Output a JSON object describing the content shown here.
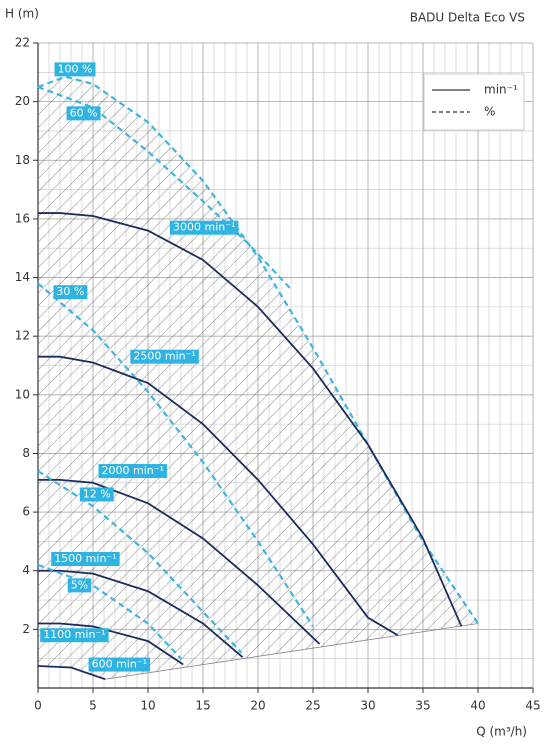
{
  "chart_data": {
    "type": "line",
    "title": "BADU Delta Eco VS",
    "y_label": "H (m)",
    "x_label": "Q (m³/h)",
    "xlim": [
      0,
      45
    ],
    "xticks": [
      0,
      5,
      10,
      15,
      20,
      25,
      30,
      35,
      40,
      45
    ],
    "ylim": [
      0,
      22
    ],
    "yticks": [
      2,
      4,
      6,
      8,
      10,
      12,
      14,
      16,
      18,
      20,
      22
    ],
    "grid": true,
    "legend": {
      "corner": "top-right",
      "entries": [
        {
          "label": "min⁻¹",
          "style": "solid",
          "color": "#1b2c5c"
        },
        {
          "label": "%",
          "style": "dashed",
          "color": "#3fb6e0"
        }
      ]
    },
    "series": [
      {
        "name": "100 %",
        "style": "dashed",
        "color": "#3fb6e0",
        "x": [
          0,
          2.5,
          5,
          10,
          15,
          20,
          25,
          30,
          35,
          40
        ],
        "values": [
          20.5,
          20.85,
          20.6,
          19.3,
          17.3,
          14.7,
          11.6,
          8.3,
          5.0,
          2.2
        ]
      },
      {
        "name": "60 %",
        "style": "dashed",
        "color": "#3fb6e0",
        "x": [
          0,
          5,
          10,
          15,
          19,
          23
        ],
        "values": [
          20.5,
          19.8,
          18.3,
          16.6,
          15.2,
          13.6
        ]
      },
      {
        "name": "3000 min⁻¹",
        "style": "solid",
        "color": "#1b2c5c",
        "x": [
          0,
          2,
          5,
          10,
          15,
          20,
          25,
          30,
          35,
          38.5
        ],
        "values": [
          16.2,
          16.2,
          16.1,
          15.6,
          14.6,
          13.0,
          10.9,
          8.3,
          5.1,
          2.1
        ]
      },
      {
        "name": "30 %",
        "style": "dashed",
        "color": "#3fb6e0",
        "x": [
          0,
          5,
          10,
          15,
          20,
          25
        ],
        "values": [
          13.8,
          12.2,
          10.1,
          7.7,
          5.0,
          2.1
        ]
      },
      {
        "name": "2500 min⁻¹",
        "style": "solid",
        "color": "#1b2c5c",
        "x": [
          0,
          2,
          5,
          10,
          15,
          20,
          25,
          30,
          32.7
        ],
        "values": [
          11.3,
          11.3,
          11.1,
          10.4,
          9.0,
          7.1,
          4.9,
          2.4,
          1.8
        ]
      },
      {
        "name": "2000 min⁻¹",
        "style": "solid",
        "color": "#1b2c5c",
        "x": [
          0,
          2,
          5,
          10,
          15,
          20,
          25.6
        ],
        "values": [
          7.1,
          7.1,
          7.0,
          6.3,
          5.1,
          3.5,
          1.5
        ]
      },
      {
        "name": "12 %",
        "style": "dashed",
        "color": "#3fb6e0",
        "x": [
          0,
          5,
          10,
          15,
          18.5
        ],
        "values": [
          7.4,
          6.2,
          4.6,
          2.6,
          1.2
        ]
      },
      {
        "name": "1500 min⁻¹",
        "style": "solid",
        "color": "#1b2c5c",
        "x": [
          0,
          2,
          5,
          10,
          15,
          18.6
        ],
        "values": [
          4.0,
          4.0,
          3.9,
          3.3,
          2.2,
          1.05
        ]
      },
      {
        "name": "5%",
        "style": "dashed",
        "color": "#3fb6e0",
        "x": [
          0,
          5,
          10,
          13
        ],
        "values": [
          4.2,
          3.5,
          2.2,
          1.0
        ]
      },
      {
        "name": "1100 min⁻¹",
        "style": "solid",
        "color": "#1b2c5c",
        "x": [
          0,
          2,
          5,
          10,
          13.2
        ],
        "values": [
          2.2,
          2.2,
          2.1,
          1.6,
          0.8
        ]
      },
      {
        "name": "600 min⁻¹",
        "style": "solid",
        "color": "#1b2c5c",
        "x": [
          0,
          3,
          6.1
        ],
        "values": [
          0.75,
          0.7,
          0.3
        ]
      }
    ]
  }
}
